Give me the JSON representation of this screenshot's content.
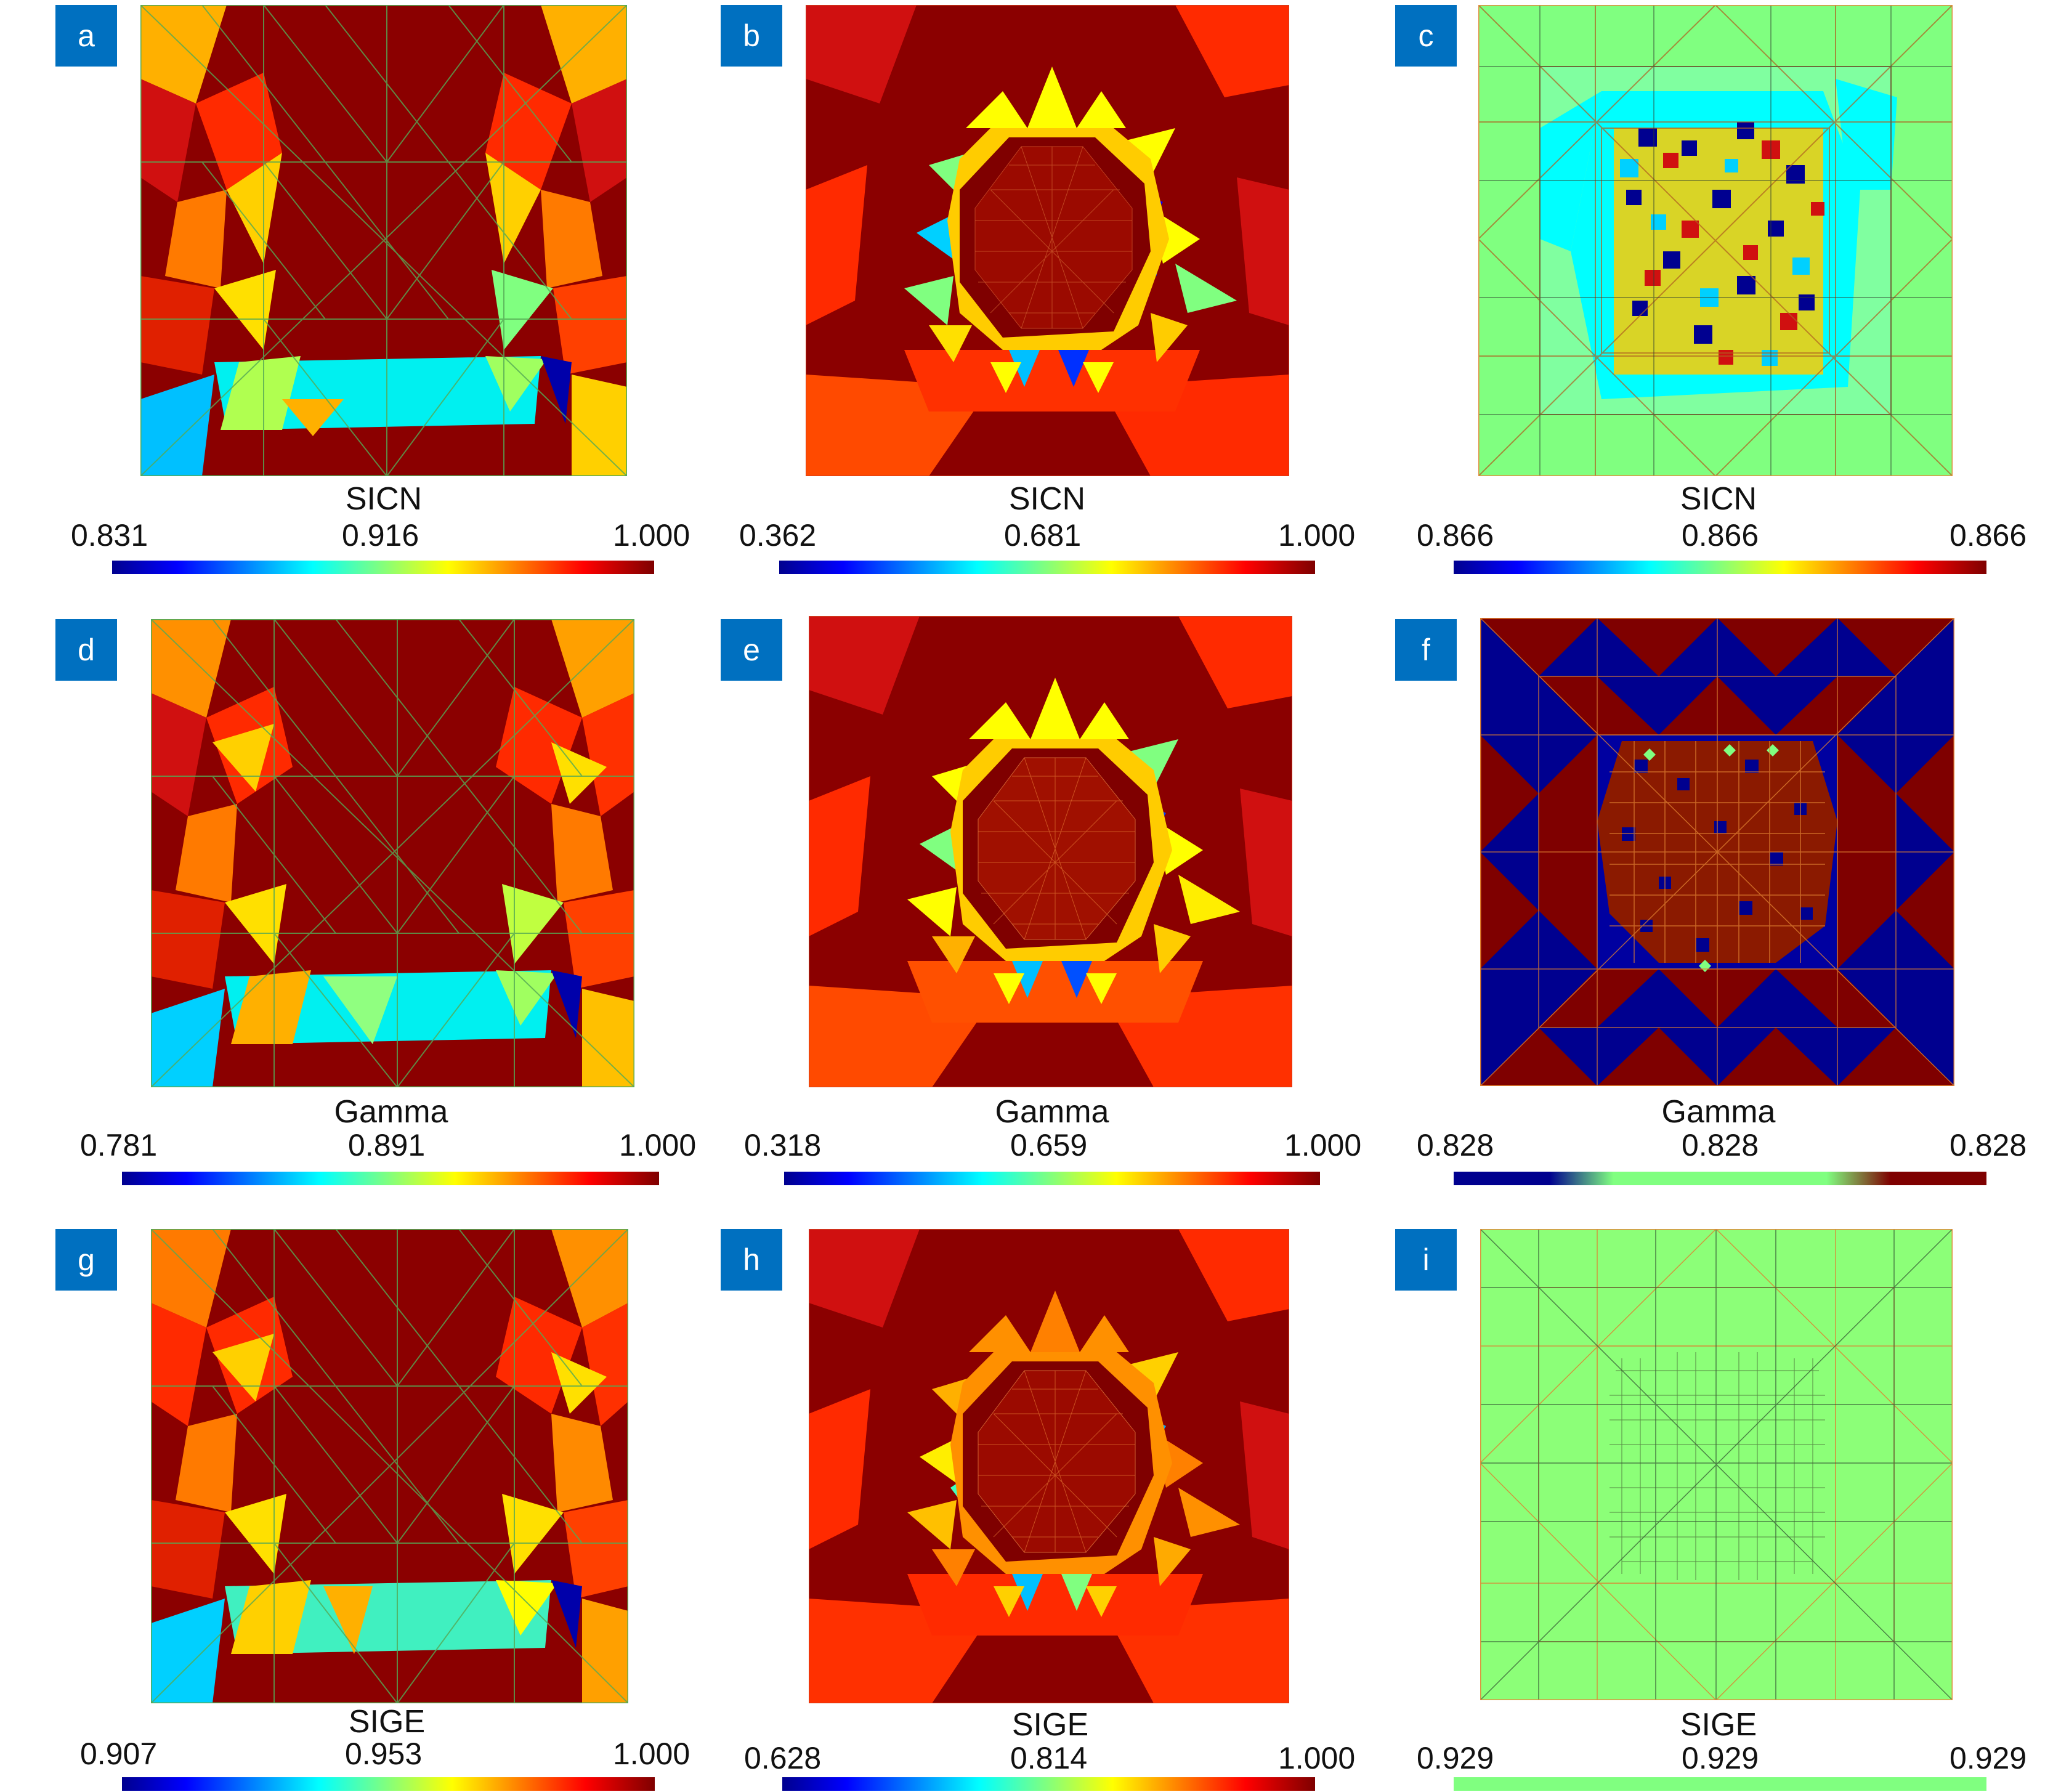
{
  "colors": {
    "jet": [
      "#00008f",
      "#0000ff",
      "#00ffff",
      "#ffff00",
      "#ff0000",
      "#7f0000"
    ],
    "mesh_line_green": "#4caf50",
    "mesh_line_orange": "#e08030",
    "badge": "#0070c0"
  },
  "panels": [
    {
      "id": "a",
      "metric": "SICN",
      "min": "0.831",
      "mid": "0.916",
      "max": "1.000",
      "scale": "jet"
    },
    {
      "id": "b",
      "metric": "SICN",
      "min": "0.362",
      "mid": "0.681",
      "max": "1.000",
      "scale": "jet"
    },
    {
      "id": "c",
      "metric": "SICN",
      "min": "0.866",
      "mid": "0.866",
      "max": "0.866",
      "scale": "jet"
    },
    {
      "id": "d",
      "metric": "Gamma",
      "min": "0.781",
      "mid": "0.891",
      "max": "1.000",
      "scale": "jet"
    },
    {
      "id": "e",
      "metric": "Gamma",
      "min": "0.318",
      "mid": "0.659",
      "max": "1.000",
      "scale": "jet"
    },
    {
      "id": "f",
      "metric": "Gamma",
      "min": "0.828",
      "mid": "0.828",
      "max": "0.828",
      "scale": "stepped"
    },
    {
      "id": "g",
      "metric": "SIGE",
      "min": "0.907",
      "mid": "0.953",
      "max": "1.000",
      "scale": "jet"
    },
    {
      "id": "h",
      "metric": "SIGE",
      "min": "0.628",
      "mid": "0.814",
      "max": "1.000",
      "scale": "jet"
    },
    {
      "id": "i",
      "metric": "SIGE",
      "min": "0.929",
      "mid": "0.929",
      "max": "0.929",
      "scale": "flat"
    }
  ]
}
